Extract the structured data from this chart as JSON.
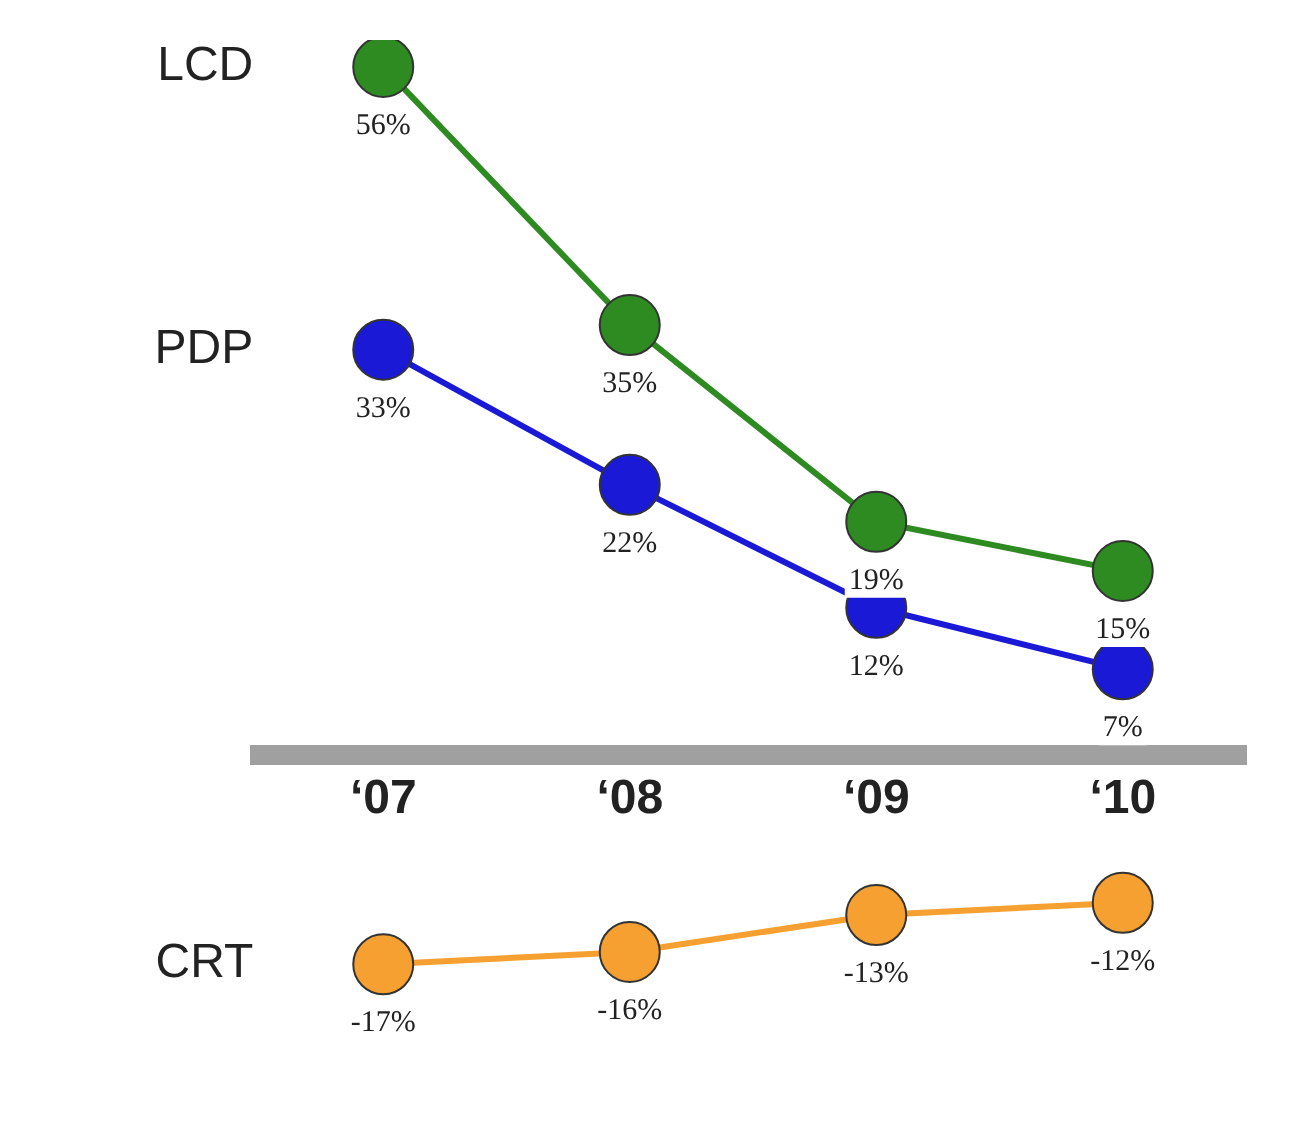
{
  "chart_data": {
    "type": "line",
    "categories": [
      "‘07",
      "‘08",
      "‘09",
      "‘10"
    ],
    "series": [
      {
        "name": "LCD",
        "color": "#2e8b22",
        "values": [
          56,
          35,
          19,
          15
        ],
        "value_labels": [
          "56%",
          "35%",
          "19%",
          "15%"
        ]
      },
      {
        "name": "PDP",
        "color": "#1a1ad6",
        "values": [
          33,
          22,
          12,
          7
        ],
        "value_labels": [
          "33%",
          "22%",
          "12%",
          "7%"
        ]
      },
      {
        "name": "CRT",
        "color": "#f5a030",
        "values": [
          -17,
          -16,
          -13,
          -12
        ],
        "value_labels": [
          "-17%",
          "-16%",
          "-13%",
          "-12%"
        ]
      }
    ],
    "marker": "circle",
    "legend": false,
    "tick_labels": "x",
    "grid": false
  }
}
